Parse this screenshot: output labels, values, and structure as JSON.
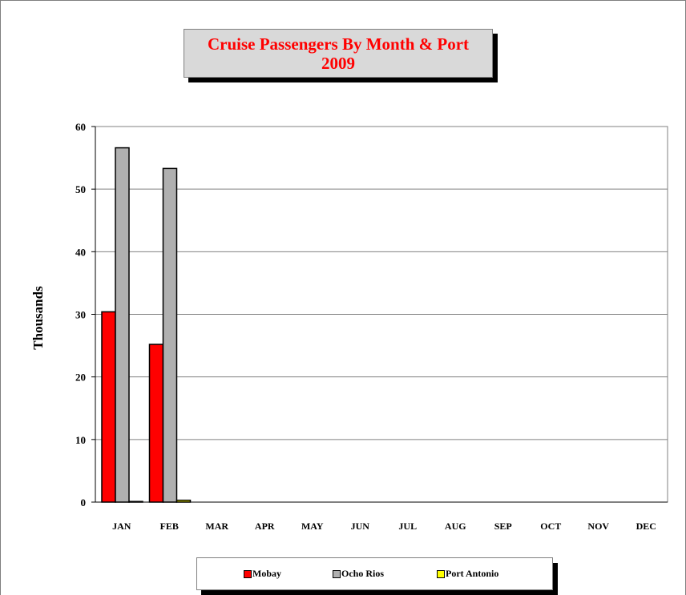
{
  "chart_data": {
    "type": "bar",
    "title_line1": "Cruise Passengers By Month & Port",
    "title_line2": "2009",
    "ylabel": "Thousands",
    "xlabel": "",
    "categories": [
      "JAN",
      "FEB",
      "MAR",
      "APR",
      "MAY",
      "JUN",
      "JUL",
      "AUG",
      "SEP",
      "OCT",
      "NOV",
      "DEC"
    ],
    "ylim": [
      0,
      60
    ],
    "yticks": [
      0,
      10,
      20,
      30,
      40,
      50,
      60
    ],
    "grid": true,
    "legend_position": "bottom",
    "series": [
      {
        "name": "Mobay",
        "color": "#ff0000",
        "values": [
          30.4,
          25.2,
          0,
          0,
          0,
          0,
          0,
          0,
          0,
          0,
          0,
          0
        ]
      },
      {
        "name": "Ocho Rios",
        "color": "#b0b0b0",
        "values": [
          56.6,
          53.3,
          0,
          0,
          0,
          0,
          0,
          0,
          0,
          0,
          0,
          0
        ]
      },
      {
        "name": "Port Antonio",
        "color": "#ffff00",
        "values": [
          0.1,
          0.3,
          0,
          0,
          0,
          0,
          0,
          0,
          0,
          0,
          0,
          0
        ]
      }
    ]
  }
}
